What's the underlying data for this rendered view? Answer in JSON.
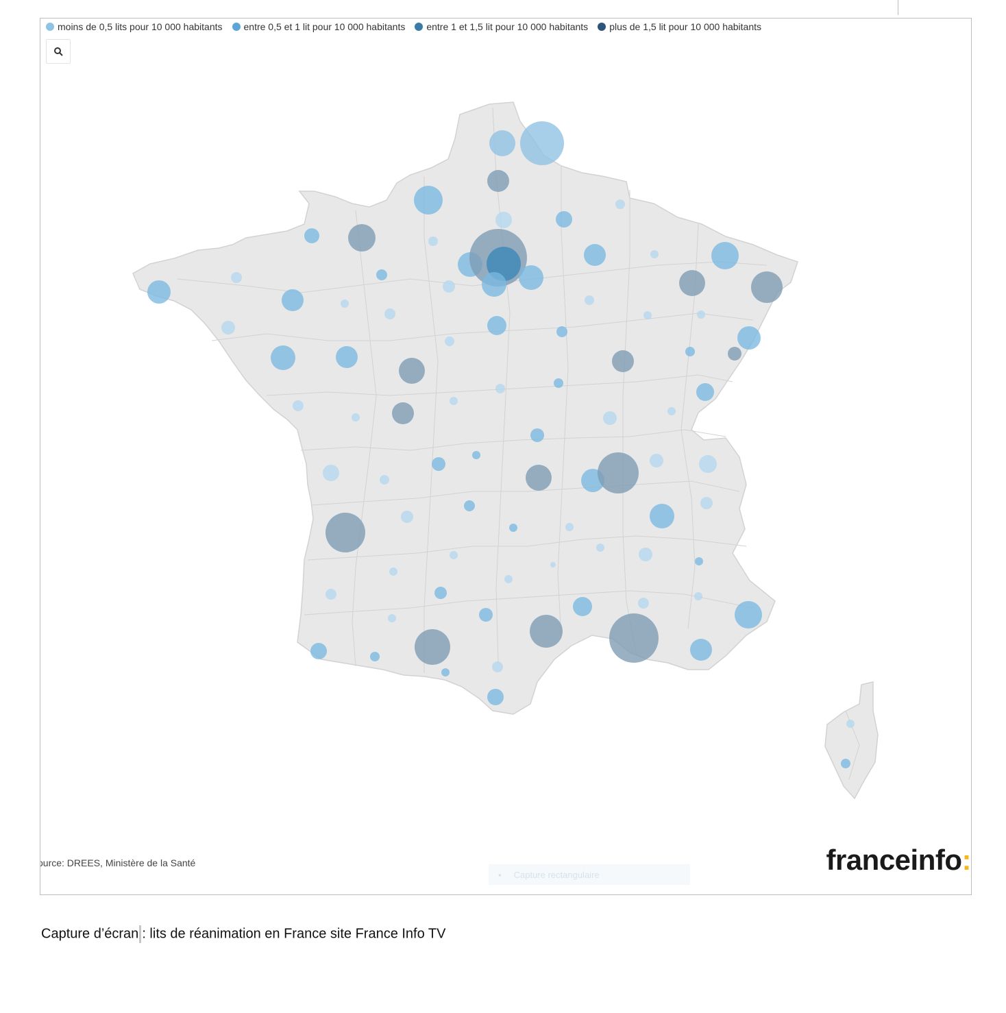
{
  "legend": [
    {
      "label": "moins de 0,5 lits pour 10 000 habitants",
      "color": "#8ec3e6"
    },
    {
      "label": "entre 0,5 et 1 lit pour 10 000 habitants",
      "color": "#5aa6d8"
    },
    {
      "label": "entre 1 et 1,5 lit pour 10 000 habitants",
      "color": "#3a7ba8"
    },
    {
      "label": "plus de 1,5 lit pour 10 000 habitants",
      "color": "#2c5577"
    }
  ],
  "toolbar": {
    "search_icon": "search-icon"
  },
  "source_text": "ource: DREES, Ministère de la Santé",
  "ghost_tool_text": "Capture rectangulaire",
  "logo": {
    "text": "franceinfo",
    "colon": ":",
    "colon_color": "#f3b81b"
  },
  "caption": {
    "before_cursor": "Capture d’écran",
    "after_cursor": ": lits de réanimation en France site France Info TV"
  },
  "colors": {
    "map_fill": "#e8e8e8",
    "map_border": "#d2d2d2",
    "light": "#9fcbe8",
    "mid": "#6aaedc",
    "gray_blue": "#7d9bb4",
    "dark": "#2f6f9e"
  }
}
